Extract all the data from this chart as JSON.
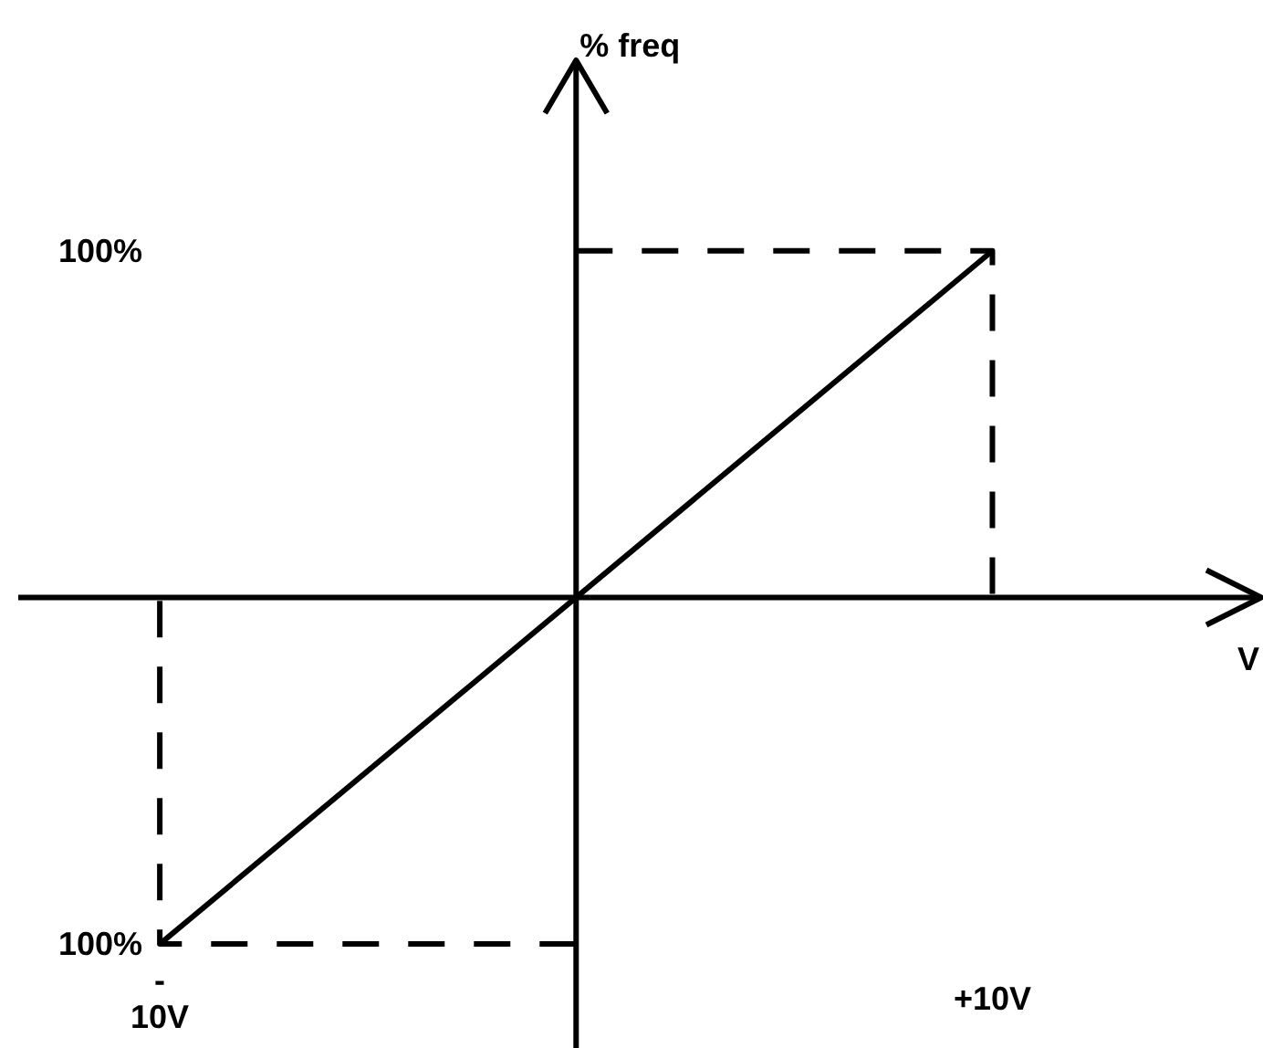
{
  "chart_data": {
    "type": "line",
    "xlabel": "V",
    "ylabel": "% freq",
    "xlim": [
      -13.4,
      16.5
    ],
    "ylim": [
      -130,
      155
    ],
    "xticks": [
      {
        "value": -10,
        "label": "-\n10V"
      },
      {
        "value": 10,
        "label": "+10V"
      }
    ],
    "yticks": [
      {
        "value": -100,
        "label": "100%"
      },
      {
        "value": 100,
        "label": "100%"
      }
    ],
    "marker": "none",
    "series": [
      {
        "x": [
          -10,
          10
        ],
        "values": [
          -100,
          100
        ],
        "color": "#000000"
      },
      {
        "x": [
          0,
          10,
          10
        ],
        "values": [
          100,
          100,
          0
        ],
        "color": "#000000",
        "line_style": "dashed"
      },
      {
        "x": [
          0,
          -10,
          -10
        ],
        "values": [
          -100,
          -100,
          0
        ],
        "color": "#000000",
        "line_style": "dashed"
      }
    ]
  }
}
